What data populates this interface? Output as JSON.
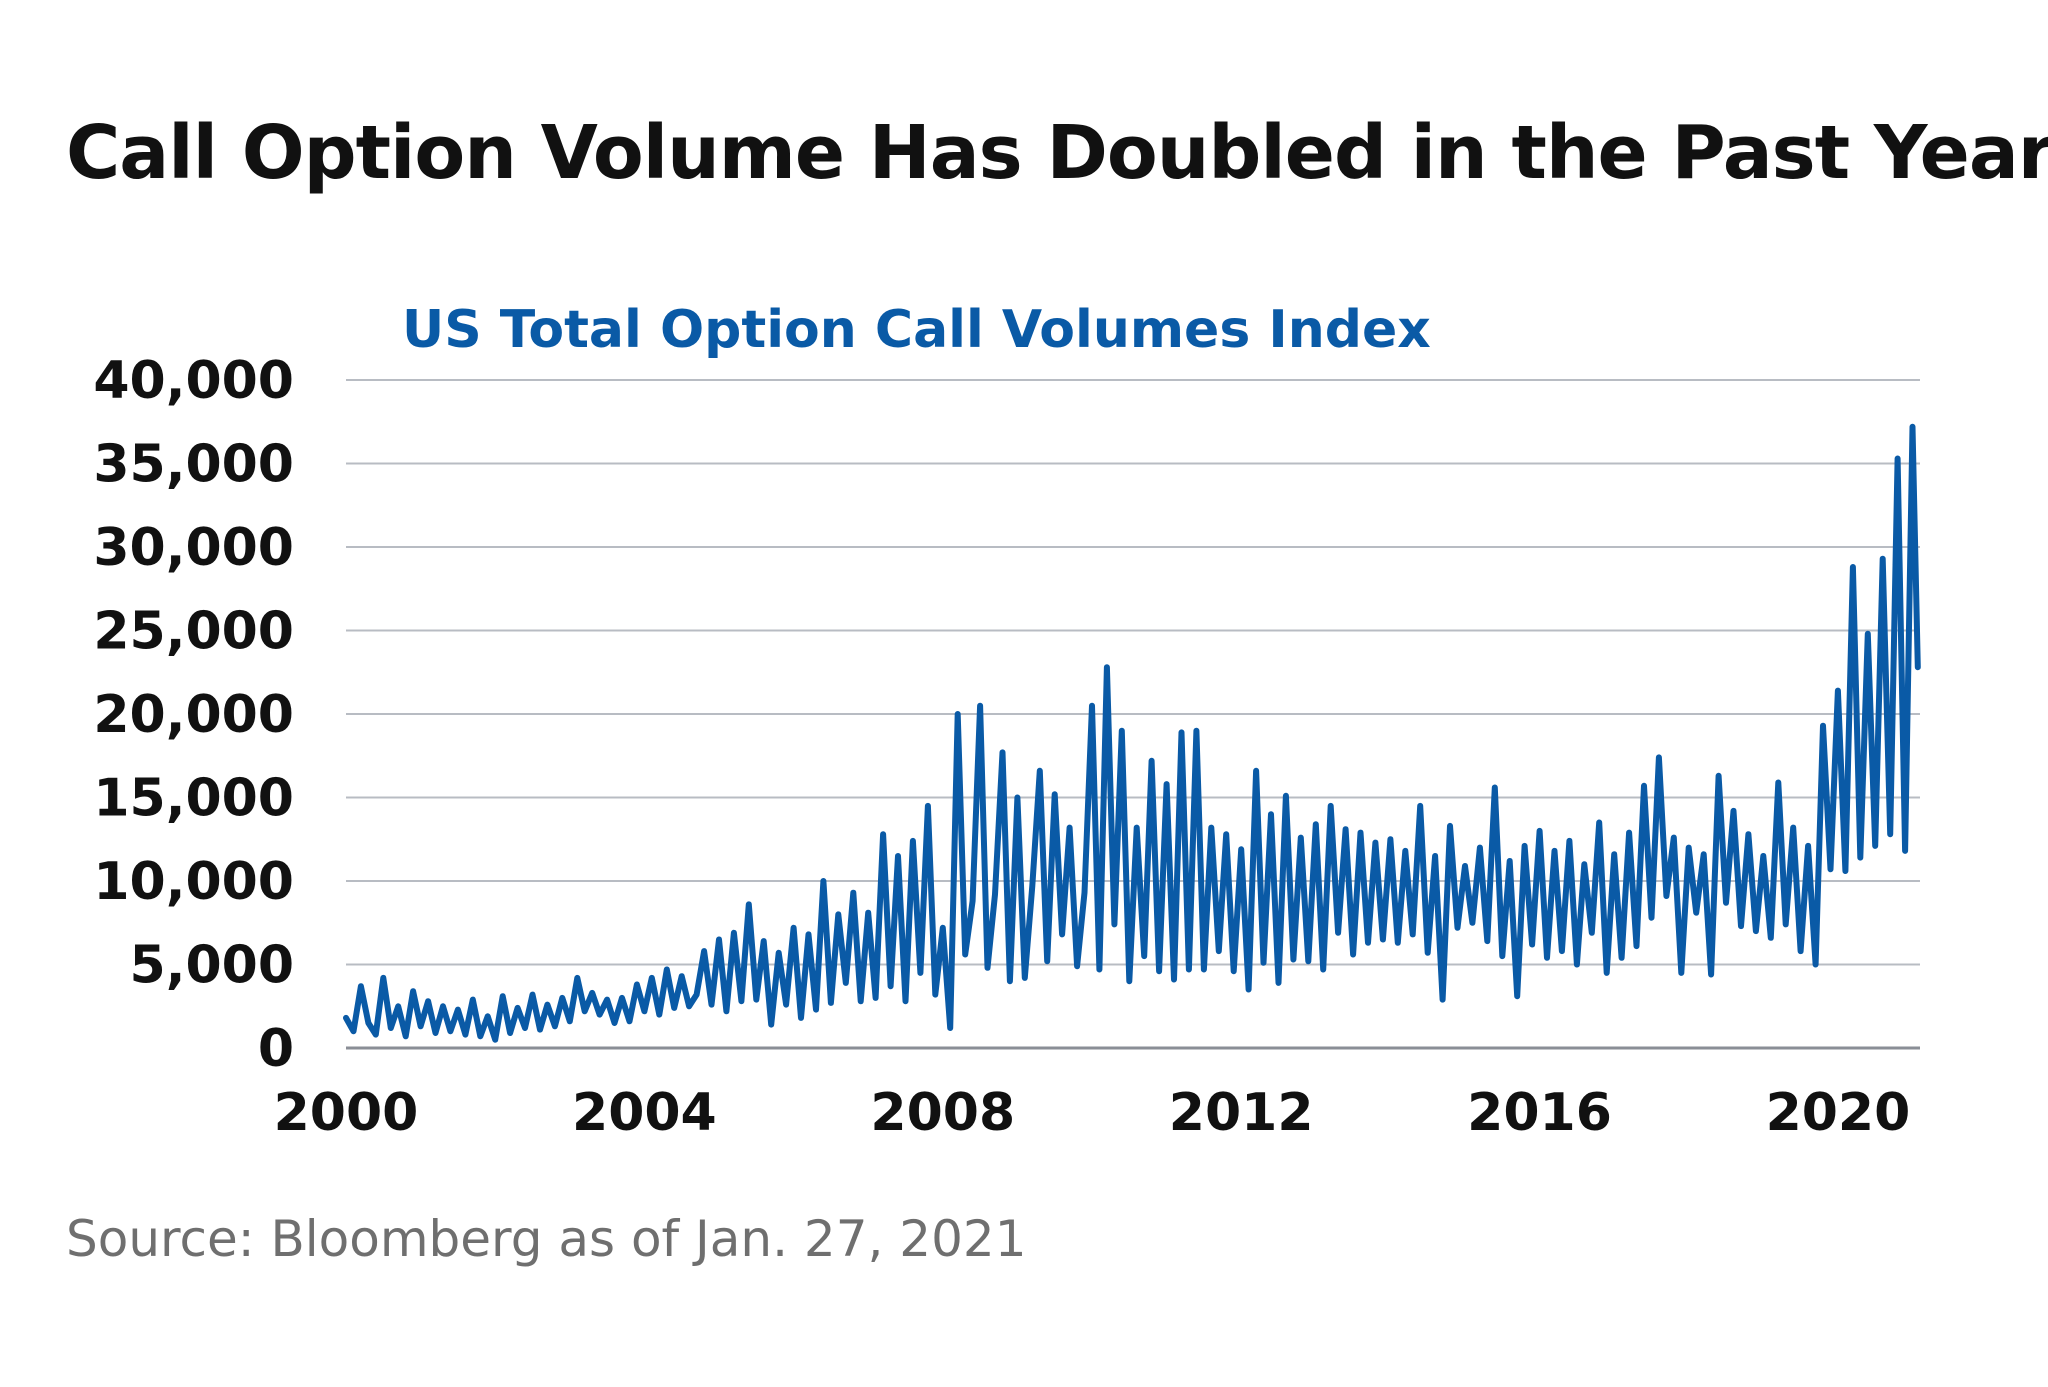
{
  "heading": "Call Option Volume Has Doubled in the Past Year",
  "source": "Source: Bloomberg as of Jan. 27, 2021",
  "colors": {
    "series": "#0a5aa6",
    "title": "#0a5aa6",
    "grid": "#b8bcc3",
    "axis": "#8a8e96",
    "text": "#111111",
    "source": "#6f6f6f"
  },
  "chart_data": {
    "type": "line",
    "title": "US Total Option Call Volumes Index",
    "xlabel": "",
    "ylabel": "",
    "xlim": [
      2000,
      2021.1
    ],
    "ylim": [
      0,
      40000
    ],
    "x_ticks": [
      2000,
      2004,
      2008,
      2012,
      2016,
      2020
    ],
    "x_tick_labels": [
      "2000",
      "2004",
      "2008",
      "2012",
      "2016",
      "2020"
    ],
    "y_ticks": [
      0,
      5000,
      10000,
      15000,
      20000,
      25000,
      30000,
      35000,
      40000
    ],
    "y_tick_labels": [
      "0",
      "5,000",
      "10,000",
      "15,000",
      "20,000",
      "25,000",
      "30,000",
      "35,000",
      "40,000"
    ],
    "grid": "horizontal",
    "legend": "none",
    "series": [
      {
        "x": [
          2000.0,
          2000.1,
          2000.2,
          2000.3,
          2000.4,
          2000.5,
          2000.6,
          2000.7,
          2000.8,
          2000.9,
          2001.0,
          2001.1,
          2001.2,
          2001.3,
          2001.4,
          2001.5,
          2001.6,
          2001.7,
          2001.8,
          2001.9,
          2002.0,
          2002.1,
          2002.2,
          2002.3,
          2002.4,
          2002.5,
          2002.6,
          2002.7,
          2002.8,
          2002.9,
          2003.0,
          2003.1,
          2003.2,
          2003.3,
          2003.4,
          2003.5,
          2003.6,
          2003.7,
          2003.8,
          2003.9,
          2004.0,
          2004.1,
          2004.2,
          2004.3,
          2004.4,
          2004.5,
          2004.6,
          2004.7,
          2004.8,
          2004.9,
          2005.0,
          2005.1,
          2005.2,
          2005.3,
          2005.4,
          2005.5,
          2005.6,
          2005.7,
          2005.8,
          2005.9,
          2006.0,
          2006.1,
          2006.2,
          2006.3,
          2006.4,
          2006.5,
          2006.6,
          2006.7,
          2006.8,
          2006.9,
          2007.0,
          2007.1,
          2007.2,
          2007.3,
          2007.4,
          2007.5,
          2007.6,
          2007.7,
          2007.8,
          2007.9,
          2008.0,
          2008.1,
          2008.2,
          2008.3,
          2008.4,
          2008.5,
          2008.6,
          2008.7,
          2008.8,
          2008.9,
          2009.0,
          2009.1,
          2009.2,
          2009.3,
          2009.4,
          2009.5,
          2009.6,
          2009.7,
          2009.8,
          2009.9,
          2010.0,
          2010.1,
          2010.2,
          2010.3,
          2010.4,
          2010.5,
          2010.6,
          2010.7,
          2010.8,
          2010.9,
          2011.0,
          2011.1,
          2011.2,
          2011.3,
          2011.4,
          2011.5,
          2011.6,
          2011.7,
          2011.8,
          2011.9,
          2012.0,
          2012.1,
          2012.2,
          2012.3,
          2012.4,
          2012.5,
          2012.6,
          2012.7,
          2012.8,
          2012.9,
          2013.0,
          2013.1,
          2013.2,
          2013.3,
          2013.4,
          2013.5,
          2013.6,
          2013.7,
          2013.8,
          2013.9,
          2014.0,
          2014.1,
          2014.2,
          2014.3,
          2014.4,
          2014.5,
          2014.6,
          2014.7,
          2014.8,
          2014.9,
          2015.0,
          2015.1,
          2015.2,
          2015.3,
          2015.4,
          2015.5,
          2015.6,
          2015.7,
          2015.8,
          2015.9,
          2016.0,
          2016.1,
          2016.2,
          2016.3,
          2016.4,
          2016.5,
          2016.6,
          2016.7,
          2016.8,
          2016.9,
          2017.0,
          2017.1,
          2017.2,
          2017.3,
          2017.4,
          2017.5,
          2017.6,
          2017.7,
          2017.8,
          2017.9,
          2018.0,
          2018.1,
          2018.2,
          2018.3,
          2018.4,
          2018.5,
          2018.6,
          2018.7,
          2018.8,
          2018.9,
          2019.0,
          2019.1,
          2019.2,
          2019.3,
          2019.4,
          2019.5,
          2019.6,
          2019.7,
          2019.8,
          2019.9,
          2020.0,
          2020.1,
          2020.2,
          2020.3,
          2020.4,
          2020.5,
          2020.6,
          2020.7,
          2020.8,
          2020.9,
          2021.0,
          2021.07
        ],
        "y": [
          1800,
          1000,
          3700,
          1500,
          800,
          4200,
          1200,
          2500,
          700,
          3400,
          1300,
          2800,
          900,
          2500,
          1000,
          2300,
          800,
          2900,
          700,
          1900,
          500,
          3100,
          900,
          2400,
          1200,
          3200,
          1100,
          2600,
          1300,
          3000,
          1600,
          4200,
          2200,
          3300,
          2000,
          2900,
          1500,
          3000,
          1600,
          3800,
          2200,
          4200,
          2000,
          4700,
          2400,
          4300,
          2500,
          3200,
          5800,
          2600,
          6500,
          2200,
          6900,
          2800,
          8600,
          2900,
          6400,
          1400,
          5700,
          2600,
          7200,
          1800,
          6800,
          2300,
          10000,
          2700,
          8000,
          3900,
          9300,
          2800,
          8100,
          3000,
          12800,
          3700,
          11500,
          2800,
          12400,
          4500,
          14500,
          3200,
          7200,
          1200,
          20000,
          5600,
          8800,
          20500,
          4800,
          9200,
          17700,
          4000,
          15000,
          4200,
          9700,
          16600,
          5200,
          15200,
          6800,
          13200,
          4900,
          9300,
          20500,
          4700,
          22800,
          7400,
          19000,
          4000,
          13200,
          5500,
          17200,
          4600,
          15800,
          4100,
          18900,
          4700,
          19000,
          4700,
          13200,
          5800,
          12800,
          4600,
          11900,
          3500,
          16600,
          5100,
          14000,
          3900,
          15100,
          5300,
          12600,
          5200,
          13400,
          4700,
          14500,
          6900,
          13100,
          5600,
          12900,
          6300,
          12300,
          6500,
          12500,
          6300,
          11800,
          6800,
          14500,
          5700,
          11500,
          2900,
          13300,
          7200,
          10900,
          7500,
          12000,
          6400,
          15600,
          5500,
          11200,
          3100,
          12100,
          6200,
          13000,
          5400,
          11800,
          5800,
          12400,
          5000,
          11000,
          6900,
          13500,
          4500,
          11600,
          5400,
          12900,
          6100,
          15700,
          7800,
          17400,
          9100,
          12600,
          4500,
          12000,
          8100,
          11600,
          4400,
          16300,
          8700,
          14200,
          7300,
          12800,
          7000,
          11500,
          6600,
          15900,
          7400,
          13200,
          5800,
          12100,
          5000,
          19300,
          10700,
          21400,
          10600,
          28800,
          11400,
          24800,
          12100,
          29300,
          12800,
          35300,
          11800,
          37200,
          22800
        ]
      }
    ]
  }
}
